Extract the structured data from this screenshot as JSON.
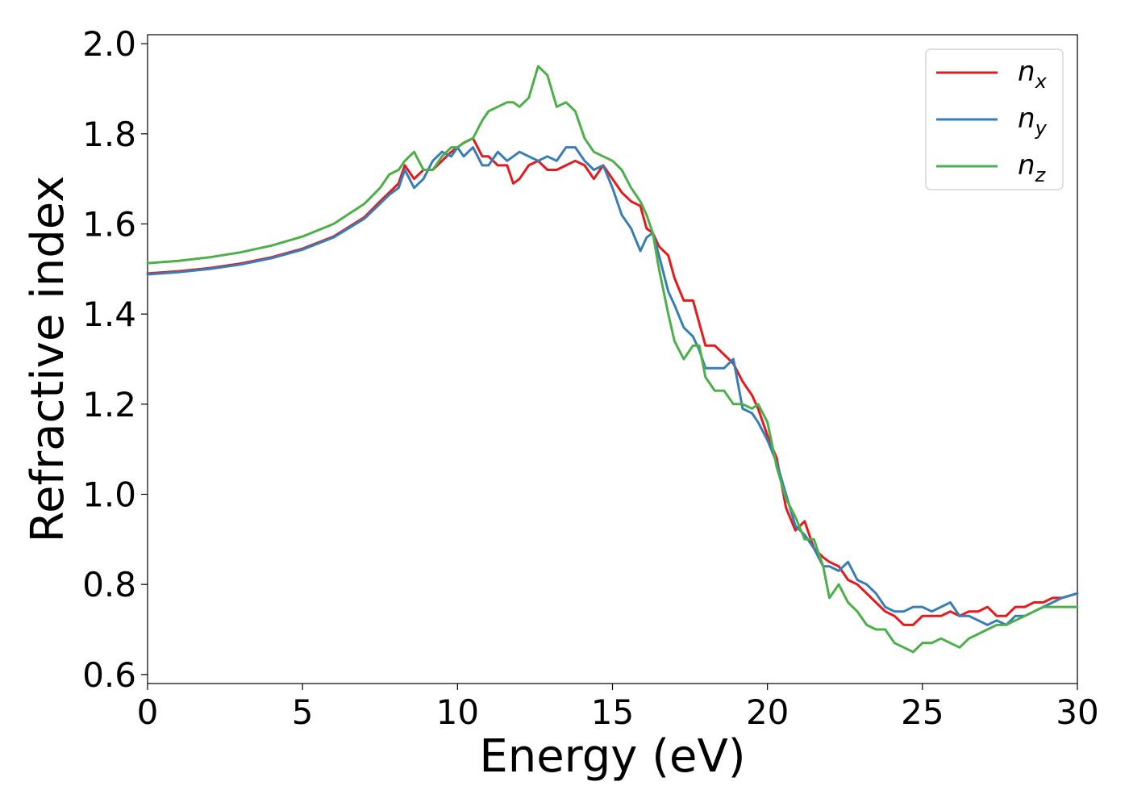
{
  "chart_data": {
    "type": "line",
    "title": "",
    "xlabel": "Energy (eV)",
    "ylabel": "Refractive index",
    "xlim": [
      0,
      30
    ],
    "ylim": [
      0.58,
      2.02
    ],
    "xticks": [
      0,
      5,
      10,
      15,
      20,
      25,
      30
    ],
    "yticks": [
      0.6,
      0.8,
      1.0,
      1.2,
      1.4,
      1.6,
      1.8,
      2.0
    ],
    "xtick_labels": [
      "0",
      "5",
      "10",
      "15",
      "20",
      "25",
      "30"
    ],
    "ytick_labels": [
      "0.6",
      "0.8",
      "1.0",
      "1.2",
      "1.4",
      "1.6",
      "1.8",
      "2.0"
    ],
    "grid": false,
    "legend_position": "top-right",
    "series": [
      {
        "name": "n_x",
        "label_main": "n",
        "label_sub": "x",
        "color": "#e41a1c",
        "x": [
          0,
          1,
          2,
          3,
          4,
          5,
          6,
          7,
          7.5,
          7.8,
          8.1,
          8.3,
          8.6,
          8.9,
          9.2,
          9.5,
          9.8,
          10.0,
          10.2,
          10.5,
          10.8,
          11.0,
          11.3,
          11.6,
          11.8,
          12.0,
          12.3,
          12.6,
          12.9,
          13.2,
          13.5,
          13.8,
          14.1,
          14.4,
          14.7,
          15.0,
          15.3,
          15.6,
          15.9,
          16.1,
          16.3,
          16.5,
          16.8,
          17.0,
          17.3,
          17.6,
          17.8,
          18.0,
          18.3,
          18.6,
          18.9,
          19.2,
          19.5,
          19.7,
          20.0,
          20.3,
          20.6,
          20.9,
          21.2,
          21.5,
          21.8,
          22.0,
          22.3,
          22.6,
          22.9,
          23.2,
          23.5,
          23.8,
          24.1,
          24.4,
          24.7,
          25.0,
          25.3,
          25.6,
          25.9,
          26.2,
          26.5,
          26.8,
          27.1,
          27.4,
          27.7,
          28.0,
          28.3,
          28.6,
          28.9,
          29.2,
          29.5,
          30.0
        ],
        "y": [
          1.49,
          1.495,
          1.502,
          1.512,
          1.526,
          1.545,
          1.572,
          1.615,
          1.65,
          1.67,
          1.69,
          1.73,
          1.7,
          1.72,
          1.72,
          1.74,
          1.76,
          1.77,
          1.78,
          1.79,
          1.75,
          1.75,
          1.73,
          1.73,
          1.69,
          1.7,
          1.73,
          1.74,
          1.72,
          1.72,
          1.73,
          1.74,
          1.73,
          1.7,
          1.73,
          1.7,
          1.67,
          1.65,
          1.64,
          1.59,
          1.58,
          1.55,
          1.53,
          1.48,
          1.43,
          1.43,
          1.38,
          1.33,
          1.33,
          1.31,
          1.29,
          1.25,
          1.22,
          1.19,
          1.13,
          1.08,
          0.97,
          0.92,
          0.94,
          0.88,
          0.86,
          0.85,
          0.84,
          0.81,
          0.8,
          0.78,
          0.76,
          0.74,
          0.73,
          0.71,
          0.71,
          0.73,
          0.73,
          0.73,
          0.74,
          0.73,
          0.74,
          0.74,
          0.75,
          0.73,
          0.73,
          0.75,
          0.75,
          0.76,
          0.76,
          0.77,
          0.77,
          0.78
        ]
      },
      {
        "name": "n_y",
        "label_main": "n",
        "label_sub": "y",
        "color": "#377eb8",
        "x": [
          0,
          1,
          2,
          3,
          4,
          5,
          6,
          7,
          7.5,
          7.8,
          8.1,
          8.3,
          8.6,
          8.9,
          9.2,
          9.5,
          9.8,
          10.0,
          10.2,
          10.5,
          10.8,
          11.0,
          11.3,
          11.6,
          11.8,
          12.0,
          12.3,
          12.6,
          12.9,
          13.2,
          13.5,
          13.8,
          14.1,
          14.4,
          14.7,
          15.0,
          15.3,
          15.6,
          15.9,
          16.1,
          16.3,
          16.5,
          16.8,
          17.0,
          17.3,
          17.6,
          17.8,
          18.0,
          18.3,
          18.6,
          18.9,
          19.2,
          19.5,
          19.7,
          20.0,
          20.3,
          20.6,
          20.9,
          21.2,
          21.5,
          21.8,
          22.0,
          22.3,
          22.6,
          22.9,
          23.2,
          23.5,
          23.8,
          24.1,
          24.4,
          24.7,
          25.0,
          25.3,
          25.6,
          25.9,
          26.2,
          26.5,
          26.8,
          27.1,
          27.4,
          27.7,
          28.0,
          28.3,
          28.6,
          28.9,
          29.2,
          29.5,
          30.0
        ],
        "y": [
          1.488,
          1.493,
          1.5,
          1.51,
          1.524,
          1.543,
          1.57,
          1.612,
          1.645,
          1.665,
          1.68,
          1.72,
          1.68,
          1.7,
          1.74,
          1.76,
          1.75,
          1.77,
          1.75,
          1.77,
          1.73,
          1.73,
          1.76,
          1.74,
          1.75,
          1.76,
          1.75,
          1.74,
          1.75,
          1.74,
          1.77,
          1.77,
          1.74,
          1.72,
          1.73,
          1.68,
          1.62,
          1.59,
          1.54,
          1.57,
          1.58,
          1.53,
          1.45,
          1.42,
          1.37,
          1.35,
          1.32,
          1.28,
          1.28,
          1.28,
          1.3,
          1.19,
          1.18,
          1.16,
          1.12,
          1.07,
          1.0,
          0.93,
          0.91,
          0.88,
          0.84,
          0.84,
          0.83,
          0.85,
          0.81,
          0.8,
          0.78,
          0.75,
          0.74,
          0.74,
          0.75,
          0.75,
          0.74,
          0.75,
          0.76,
          0.73,
          0.73,
          0.72,
          0.71,
          0.72,
          0.71,
          0.73,
          0.73,
          0.74,
          0.75,
          0.76,
          0.77,
          0.78
        ]
      },
      {
        "name": "n_z",
        "label_main": "n",
        "label_sub": "z",
        "color": "#4daf4a",
        "x": [
          0,
          1,
          2,
          3,
          4,
          5,
          6,
          7,
          7.5,
          7.8,
          8.1,
          8.3,
          8.6,
          8.9,
          9.2,
          9.5,
          9.8,
          10.0,
          10.2,
          10.5,
          10.8,
          11.0,
          11.3,
          11.6,
          11.8,
          12.0,
          12.3,
          12.6,
          12.9,
          13.2,
          13.5,
          13.8,
          14.1,
          14.4,
          14.7,
          15.0,
          15.3,
          15.6,
          15.9,
          16.1,
          16.3,
          16.5,
          16.8,
          17.0,
          17.3,
          17.6,
          17.8,
          18.0,
          18.3,
          18.6,
          18.9,
          19.2,
          19.5,
          19.7,
          20.0,
          20.3,
          20.6,
          20.9,
          21.2,
          21.5,
          21.8,
          22.0,
          22.3,
          22.6,
          22.9,
          23.2,
          23.5,
          23.8,
          24.1,
          24.4,
          24.7,
          25.0,
          25.3,
          25.6,
          25.9,
          26.2,
          26.5,
          26.8,
          27.1,
          27.4,
          27.7,
          28.0,
          28.3,
          28.6,
          28.9,
          29.2,
          29.5,
          30.0
        ],
        "y": [
          1.513,
          1.518,
          1.526,
          1.537,
          1.552,
          1.572,
          1.6,
          1.645,
          1.68,
          1.71,
          1.72,
          1.74,
          1.76,
          1.72,
          1.72,
          1.75,
          1.77,
          1.77,
          1.78,
          1.79,
          1.83,
          1.85,
          1.86,
          1.87,
          1.87,
          1.86,
          1.88,
          1.95,
          1.93,
          1.86,
          1.87,
          1.85,
          1.79,
          1.76,
          1.75,
          1.74,
          1.72,
          1.68,
          1.65,
          1.62,
          1.58,
          1.5,
          1.4,
          1.34,
          1.3,
          1.33,
          1.33,
          1.26,
          1.23,
          1.23,
          1.2,
          1.2,
          1.19,
          1.2,
          1.16,
          1.06,
          0.99,
          0.95,
          0.9,
          0.9,
          0.84,
          0.77,
          0.8,
          0.76,
          0.74,
          0.71,
          0.7,
          0.7,
          0.67,
          0.66,
          0.65,
          0.67,
          0.67,
          0.68,
          0.67,
          0.66,
          0.68,
          0.69,
          0.7,
          0.71,
          0.71,
          0.72,
          0.73,
          0.74,
          0.75,
          0.75,
          0.75,
          0.75
        ]
      }
    ]
  }
}
